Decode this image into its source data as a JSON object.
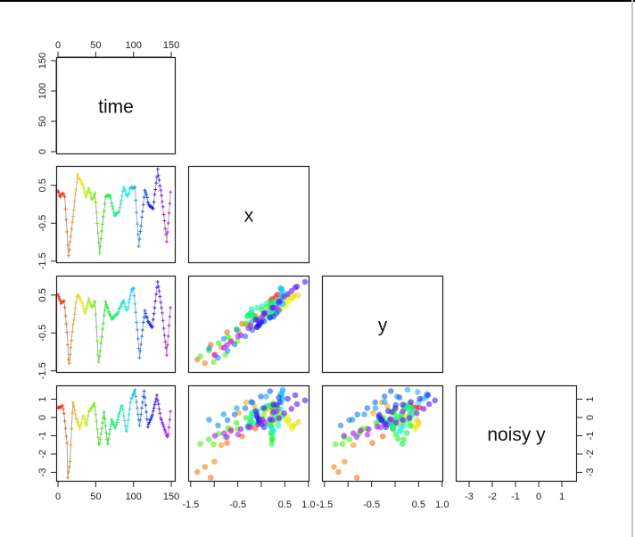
{
  "chart_data": {
    "type": "scatter",
    "title": "",
    "variables": [
      "time",
      "x",
      "y",
      "noisy y"
    ],
    "layout": "lower-triangle pairs plot (4x4), diagonal shows variable names",
    "color_scheme": "rainbow by time (red -> orange -> yellow -> green -> cyan -> blue -> purple -> magenta)",
    "n_points": 150,
    "axes": {
      "time": {
        "range": [
          0,
          150
        ],
        "ticks": [
          0,
          50,
          100,
          150
        ],
        "tick_labels": [
          "0",
          "50",
          "100",
          "150"
        ]
      },
      "x": {
        "range": [
          -1.55,
          1.0
        ],
        "ticks": [
          -1.5,
          -0.5,
          0.5,
          1.0
        ],
        "tick_labels": [
          "-1.5",
          "-0.5",
          "0.5",
          "1.0"
        ],
        "y_ticks": [
          -1.5,
          -0.5,
          0.5
        ],
        "y_tick_labels": [
          "-1.5",
          "-0.5",
          "0.5"
        ]
      },
      "y": {
        "range": [
          -1.55,
          1.0
        ],
        "ticks": [
          -1.5,
          -0.5,
          0.5,
          1.0
        ],
        "tick_labels": [
          "-1.5",
          "-0.5",
          "0.5",
          "1.0"
        ],
        "y_ticks": [
          -1.5,
          -0.5,
          0.5
        ],
        "y_tick_labels": [
          "-1.5",
          "-0.5",
          "0.5"
        ]
      },
      "noisy_y": {
        "range": [
          -3.5,
          1.75
        ],
        "ticks": [
          -3,
          -2,
          -1,
          0,
          1
        ],
        "tick_labels": [
          "-3",
          "-2",
          "-1",
          "0",
          "1"
        ]
      }
    },
    "series": [
      {
        "name": "x",
        "keypoints_time": [
          0,
          3,
          6,
          9,
          14,
          20,
          26,
          33,
          37,
          41,
          45,
          49,
          55,
          63,
          69,
          75,
          81,
          87,
          92,
          96,
          102,
          107,
          115,
          120,
          126,
          132,
          138,
          144,
          149
        ],
        "keypoints_value": [
          0.35,
          0.21,
          0.3,
          0.2,
          -1.36,
          -0.3,
          0.76,
          0.5,
          0.2,
          0.43,
          0.1,
          0.3,
          -1.27,
          0.2,
          0.25,
          -0.33,
          -0.18,
          0.43,
          0.2,
          0.43,
          0.43,
          -1.12,
          0.4,
          0.0,
          -0.1,
          0.92,
          0.1,
          -1.0,
          0.3
        ]
      },
      {
        "name": "y",
        "keypoints_time": [
          0,
          4,
          8,
          12,
          14.5,
          19.7,
          25.5,
          31,
          36,
          41,
          45,
          49,
          53.8,
          63,
          70.8,
          78.6,
          87,
          91.4,
          97,
          100,
          108,
          115,
          119,
          125,
          132,
          138,
          144,
          149
        ],
        "keypoints_value": [
          0.54,
          0.3,
          0.35,
          -0.46,
          -1.4,
          -0.35,
          0.51,
          0.35,
          0.0,
          0.4,
          0.15,
          0.35,
          -1.33,
          0.3,
          -0.13,
          0.02,
          0.37,
          0.05,
          0.6,
          0.7,
          -1.13,
          0.1,
          -0.2,
          -0.35,
          0.87,
          0.02,
          -1.1,
          0.19
        ]
      },
      {
        "name": "noisy y",
        "keypoints_time": [
          0,
          6,
          8,
          12,
          13,
          16,
          19.7,
          24,
          29,
          33.5,
          37.5,
          41,
          48.5,
          54.4,
          61,
          65.7,
          71,
          76,
          84.7,
          90.6,
          96.5,
          102,
          108,
          114,
          119,
          125,
          131,
          136,
          145.5,
          149
        ],
        "keypoints_value": [
          0.52,
          0.65,
          0.2,
          -1.4,
          -3.27,
          -2.4,
          0.88,
          -0.02,
          -0.6,
          0.15,
          -0.5,
          0.3,
          0.8,
          -1.64,
          0.3,
          -1.5,
          -0.1,
          -0.57,
          0.74,
          -0.9,
          0.95,
          1.5,
          -0.45,
          1.47,
          -0.5,
          0.15,
          1.2,
          -0.02,
          -1.15,
          0.3
        ]
      }
    ]
  },
  "panels": {
    "diagonal_labels": [
      "time",
      "x",
      "y",
      "noisy y"
    ]
  },
  "colors": {
    "axis": "#222222",
    "line": "#a8a8a8",
    "top_rule": "#000000",
    "right_rule": "#c8c8c8"
  }
}
